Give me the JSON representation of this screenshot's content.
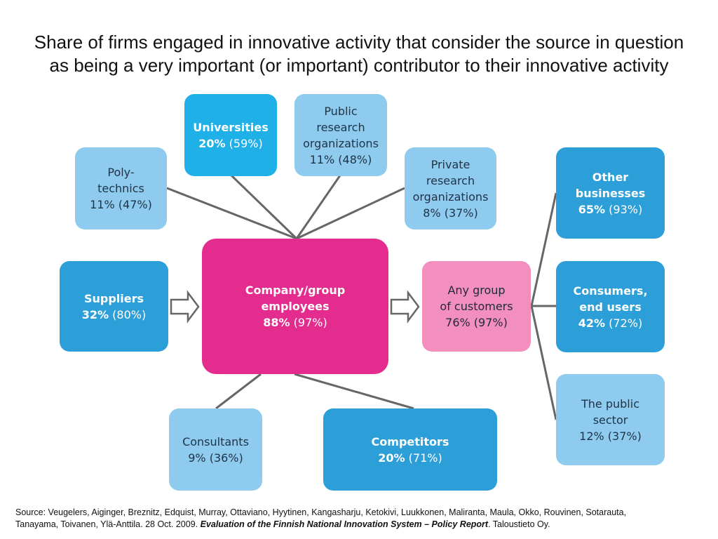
{
  "title": {
    "line1": "Share of firms engaged in innovative activity that consider the source in question",
    "line2": "as being a very important (or important) contributor to their innovative activity"
  },
  "colors": {
    "light_blue": "#8ecbee",
    "mid_blue": "#2c9fd9",
    "bright_blue": "#1fb0e8",
    "magenta": "#e42b8e",
    "pink": "#f28fbe",
    "connector": "#666666"
  },
  "nodes": {
    "universities": {
      "label": "Universities",
      "value": "20%",
      "alt": "(59%)"
    },
    "public_research": {
      "line1": "Public",
      "line2": "research",
      "line3": "organizations",
      "value": "11% (48%)"
    },
    "polytechnics": {
      "line1": "Poly-",
      "line2": "technics",
      "value": "11% (47%)"
    },
    "private_research": {
      "line1": "Private",
      "line2": "research",
      "line3": "organizations",
      "value": "8% (37%)"
    },
    "other_businesses": {
      "line1": "Other",
      "line2": "businesses",
      "value": "65%",
      "alt": "(93%)"
    },
    "suppliers": {
      "label": "Suppliers",
      "value": "32%",
      "alt": "(80%)"
    },
    "employees": {
      "line1": "Company/group",
      "line2": "employees",
      "value": "88%",
      "alt": "(97%)"
    },
    "customers": {
      "line1": "Any group",
      "line2": "of customers",
      "value": "76% (97%)"
    },
    "consumers": {
      "line1": "Consumers,",
      "line2": "end users",
      "value": "42%",
      "alt": "(72%)"
    },
    "public_sector": {
      "line1": "The public",
      "line2": "sector",
      "value": "12% (37%)"
    },
    "consultants": {
      "label": "Consultants",
      "value": "9% (36%)"
    },
    "competitors": {
      "label": "Competitors",
      "value": "20%",
      "alt": "(71%)"
    }
  },
  "source": {
    "line1": "Source: Veugelers, Aiginger, Breznitz, Edquist, Murray, Ottaviano, Hyytinen, Kangasharju, Ketokivi, Luukkonen, Maliranta, Maula, Okko, Rouvinen, Sotarauta,",
    "line2_prefix": "Tanayama, Toivanen, Ylä-Anttila. 28 Oct. 2009. ",
    "report_title": "Evaluation of the Finnish National Innovation System – Policy Report",
    "line2_suffix": ". Taloustieto Oy."
  }
}
